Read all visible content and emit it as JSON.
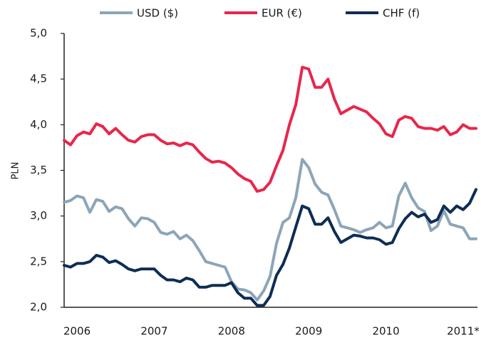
{
  "chart_data": {
    "type": "line",
    "y_label": "PLN",
    "categories": [
      null,
      null,
      "2006",
      null,
      null,
      null,
      null,
      null,
      null,
      null,
      null,
      null,
      null,
      null,
      "2007",
      null,
      null,
      null,
      null,
      null,
      null,
      null,
      null,
      null,
      null,
      null,
      "2008",
      null,
      null,
      null,
      null,
      null,
      null,
      null,
      null,
      null,
      null,
      null,
      "2009",
      null,
      null,
      null,
      null,
      null,
      null,
      null,
      null,
      null,
      null,
      null,
      "2010",
      null,
      null,
      null,
      null,
      null,
      null,
      null,
      null,
      null,
      null,
      null,
      "2011*",
      null,
      null
    ],
    "series": [
      {
        "name": "USD ($)",
        "color": "#8ca5b8",
        "values": [
          3.15,
          3.17,
          3.22,
          3.2,
          3.04,
          3.18,
          3.16,
          3.05,
          3.1,
          3.08,
          2.97,
          2.89,
          2.98,
          2.97,
          2.93,
          2.82,
          2.8,
          2.83,
          2.75,
          2.79,
          2.73,
          2.62,
          2.5,
          2.48,
          2.46,
          2.44,
          2.28,
          2.2,
          2.19,
          2.16,
          2.08,
          2.18,
          2.34,
          2.7,
          2.93,
          2.98,
          3.2,
          3.62,
          3.53,
          3.35,
          3.26,
          3.23,
          3.07,
          2.89,
          2.87,
          2.85,
          2.82,
          2.85,
          2.87,
          2.93,
          2.87,
          2.89,
          3.22,
          3.36,
          3.2,
          3.09,
          3.05,
          2.84,
          2.89,
          3.06,
          2.91,
          2.89,
          2.87,
          2.75,
          2.75
        ]
      },
      {
        "name": "EUR (€)",
        "color": "#e8264a",
        "values": [
          3.83,
          3.78,
          3.88,
          3.92,
          3.9,
          4.01,
          3.98,
          3.9,
          3.96,
          3.89,
          3.83,
          3.81,
          3.87,
          3.89,
          3.89,
          3.83,
          3.79,
          3.8,
          3.77,
          3.8,
          3.78,
          3.7,
          3.63,
          3.59,
          3.6,
          3.58,
          3.53,
          3.46,
          3.41,
          3.38,
          3.27,
          3.29,
          3.37,
          3.55,
          3.72,
          4.0,
          4.22,
          4.63,
          4.61,
          4.41,
          4.41,
          4.5,
          4.28,
          4.12,
          4.16,
          4.2,
          4.17,
          4.14,
          4.07,
          4.01,
          3.9,
          3.87,
          4.05,
          4.09,
          4.07,
          3.98,
          3.96,
          3.96,
          3.94,
          3.98,
          3.89,
          3.92,
          4.0,
          3.96,
          3.96
        ]
      },
      {
        "name": "CHF (f)",
        "color": "#0d2d55",
        "values": [
          2.46,
          2.44,
          2.48,
          2.48,
          2.5,
          2.57,
          2.55,
          2.49,
          2.51,
          2.47,
          2.42,
          2.4,
          2.42,
          2.42,
          2.42,
          2.35,
          2.3,
          2.3,
          2.28,
          2.32,
          2.3,
          2.22,
          2.22,
          2.24,
          2.24,
          2.24,
          2.27,
          2.16,
          2.1,
          2.1,
          2.02,
          2.02,
          2.12,
          2.35,
          2.47,
          2.65,
          2.88,
          3.11,
          3.08,
          2.91,
          2.91,
          2.98,
          2.83,
          2.71,
          2.75,
          2.79,
          2.78,
          2.76,
          2.76,
          2.74,
          2.69,
          2.71,
          2.86,
          2.97,
          3.04,
          2.99,
          3.02,
          2.93,
          2.96,
          3.11,
          3.04,
          3.11,
          3.07,
          3.14,
          3.29
        ]
      }
    ],
    "ylim": [
      2.0,
      5.0
    ],
    "yticks": [
      {
        "value": 2.0,
        "label": "2,0"
      },
      {
        "value": 2.5,
        "label": "2,5"
      },
      {
        "value": 3.0,
        "label": "3,0"
      },
      {
        "value": 3.5,
        "label": "3,5"
      },
      {
        "value": 4.0,
        "label": "4,0"
      },
      {
        "value": 4.5,
        "label": "4,5"
      },
      {
        "value": 5.0,
        "label": "5,0"
      }
    ],
    "grid": false,
    "legend": "top"
  }
}
